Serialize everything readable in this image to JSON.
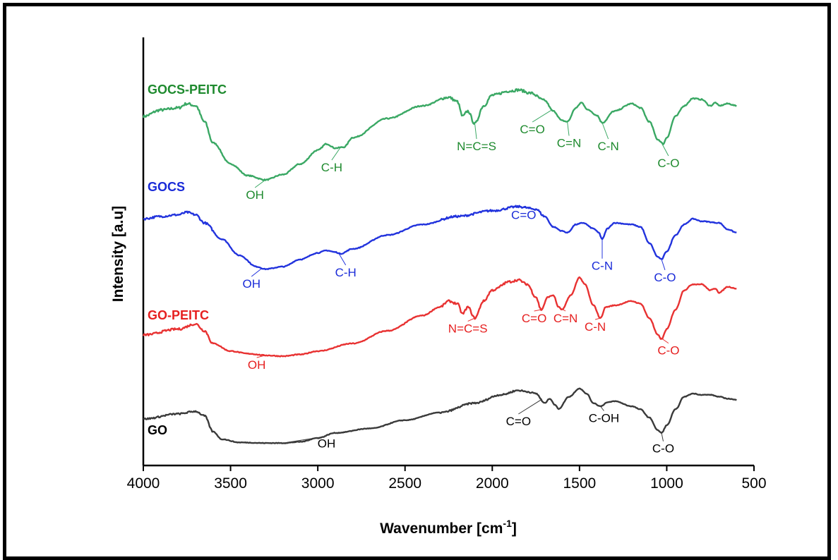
{
  "chart_data": {
    "type": "line",
    "title": "",
    "xlabel": "Wavenumber [cm",
    "xlabel_sup": "-1",
    "xlabel_end": "]",
    "ylabel": "Intensity  [a.u]",
    "xlim": [
      4000,
      500
    ],
    "x_reversed": true,
    "xticks": [
      4000,
      3500,
      3000,
      2500,
      2000,
      1500,
      1000,
      500
    ],
    "yticks_shown": false,
    "grid": false,
    "legend": "inline-labels",
    "series": [
      {
        "name": "GOCS-PEITC",
        "color": "#3aa864",
        "label_color": "#1e8a2e",
        "offset": 3,
        "points": [
          [
            4000,
            0.6
          ],
          [
            3900,
            0.66
          ],
          [
            3800,
            0.68
          ],
          [
            3750,
            0.72
          ],
          [
            3700,
            0.7
          ],
          [
            3650,
            0.55
          ],
          [
            3600,
            0.35
          ],
          [
            3500,
            0.15
          ],
          [
            3400,
            0.04
          ],
          [
            3300,
            0.0
          ],
          [
            3200,
            0.05
          ],
          [
            3100,
            0.15
          ],
          [
            3000,
            0.28
          ],
          [
            2950,
            0.34
          ],
          [
            2900,
            0.3
          ],
          [
            2850,
            0.31
          ],
          [
            2800,
            0.4
          ],
          [
            2600,
            0.58
          ],
          [
            2400,
            0.7
          ],
          [
            2250,
            0.78
          ],
          [
            2200,
            0.74
          ],
          [
            2170,
            0.6
          ],
          [
            2140,
            0.65
          ],
          [
            2100,
            0.53
          ],
          [
            2050,
            0.7
          ],
          [
            2000,
            0.8
          ],
          [
            1900,
            0.84
          ],
          [
            1850,
            0.85
          ],
          [
            1780,
            0.82
          ],
          [
            1700,
            0.75
          ],
          [
            1650,
            0.65
          ],
          [
            1600,
            0.56
          ],
          [
            1570,
            0.55
          ],
          [
            1520,
            0.68
          ],
          [
            1490,
            0.73
          ],
          [
            1450,
            0.66
          ],
          [
            1400,
            0.61
          ],
          [
            1370,
            0.54
          ],
          [
            1300,
            0.65
          ],
          [
            1200,
            0.72
          ],
          [
            1150,
            0.68
          ],
          [
            1100,
            0.55
          ],
          [
            1050,
            0.38
          ],
          [
            1020,
            0.34
          ],
          [
            1000,
            0.4
          ],
          [
            950,
            0.6
          ],
          [
            900,
            0.7
          ],
          [
            850,
            0.77
          ],
          [
            800,
            0.76
          ],
          [
            750,
            0.7
          ],
          [
            720,
            0.73
          ],
          [
            700,
            0.7
          ],
          [
            650,
            0.72
          ],
          [
            600,
            0.7
          ]
        ],
        "annotations": [
          {
            "label": "OH",
            "x": 3300,
            "tx": 3360,
            "ty": -0.18
          },
          {
            "label": "C-H",
            "x": 2870,
            "tx": 2920,
            "ty": 0.08
          },
          {
            "label": "N=C=S",
            "x": 2100,
            "tx": 2090,
            "ty": 0.28
          },
          {
            "label": "C=O",
            "x": 1660,
            "tx": 1770,
            "ty": 0.44
          },
          {
            "label": "C=N",
            "x": 1570,
            "tx": 1560,
            "ty": 0.31
          },
          {
            "label": "C-N",
            "x": 1370,
            "tx": 1335,
            "ty": 0.28
          },
          {
            "label": "C-O",
            "x": 1030,
            "tx": 990,
            "ty": 0.12
          }
        ]
      },
      {
        "name": "GOCS",
        "color": "#2233dd",
        "label_color": "#1a2bd8",
        "offset": 2,
        "points": [
          [
            4000,
            0.65
          ],
          [
            3900,
            0.68
          ],
          [
            3800,
            0.7
          ],
          [
            3750,
            0.73
          ],
          [
            3700,
            0.7
          ],
          [
            3650,
            0.6
          ],
          [
            3550,
            0.4
          ],
          [
            3450,
            0.2
          ],
          [
            3350,
            0.06
          ],
          [
            3300,
            0.03
          ],
          [
            3200,
            0.06
          ],
          [
            3100,
            0.15
          ],
          [
            3000,
            0.23
          ],
          [
            2950,
            0.26
          ],
          [
            2900,
            0.24
          ],
          [
            2870,
            0.22
          ],
          [
            2800,
            0.28
          ],
          [
            2600,
            0.45
          ],
          [
            2400,
            0.58
          ],
          [
            2200,
            0.68
          ],
          [
            2000,
            0.75
          ],
          [
            1850,
            0.8
          ],
          [
            1750,
            0.77
          ],
          [
            1700,
            0.68
          ],
          [
            1650,
            0.55
          ],
          [
            1600,
            0.5
          ],
          [
            1570,
            0.48
          ],
          [
            1520,
            0.58
          ],
          [
            1480,
            0.6
          ],
          [
            1420,
            0.53
          ],
          [
            1390,
            0.48
          ],
          [
            1370,
            0.4
          ],
          [
            1340,
            0.53
          ],
          [
            1300,
            0.6
          ],
          [
            1200,
            0.58
          ],
          [
            1150,
            0.55
          ],
          [
            1100,
            0.35
          ],
          [
            1050,
            0.18
          ],
          [
            1030,
            0.15
          ],
          [
            1000,
            0.25
          ],
          [
            950,
            0.45
          ],
          [
            900,
            0.58
          ],
          [
            850,
            0.65
          ],
          [
            800,
            0.62
          ],
          [
            700,
            0.6
          ],
          [
            650,
            0.52
          ],
          [
            600,
            0.48
          ]
        ],
        "annotations": [
          {
            "label": "OH",
            "x": 3320,
            "tx": 3380,
            "ty": -0.2
          },
          {
            "label": "C-H",
            "x": 2880,
            "tx": 2840,
            "ty": -0.06
          },
          {
            "label": "C=O",
            "x": 1760,
            "tx": 1820,
            "ty": 0.65
          },
          {
            "label": "C-N",
            "x": 1370,
            "tx": 1370,
            "ty": 0.02
          },
          {
            "label": "C-O",
            "x": 1030,
            "tx": 1010,
            "ty": -0.12
          }
        ]
      },
      {
        "name": "GO-PEITC",
        "color": "#e83232",
        "label_color": "#e62020",
        "offset": 1,
        "points": [
          [
            4000,
            0.25
          ],
          [
            3800,
            0.32
          ],
          [
            3700,
            0.38
          ],
          [
            3650,
            0.3
          ],
          [
            3600,
            0.15
          ],
          [
            3500,
            0.06
          ],
          [
            3400,
            0.03
          ],
          [
            3300,
            0.01
          ],
          [
            3200,
            0.0
          ],
          [
            3100,
            0.02
          ],
          [
            3000,
            0.06
          ],
          [
            2800,
            0.15
          ],
          [
            2600,
            0.3
          ],
          [
            2400,
            0.48
          ],
          [
            2300,
            0.58
          ],
          [
            2250,
            0.65
          ],
          [
            2200,
            0.62
          ],
          [
            2170,
            0.5
          ],
          [
            2140,
            0.58
          ],
          [
            2100,
            0.45
          ],
          [
            2050,
            0.65
          ],
          [
            2000,
            0.78
          ],
          [
            1900,
            0.88
          ],
          [
            1850,
            0.9
          ],
          [
            1800,
            0.85
          ],
          [
            1750,
            0.7
          ],
          [
            1720,
            0.55
          ],
          [
            1680,
            0.7
          ],
          [
            1650,
            0.72
          ],
          [
            1620,
            0.58
          ],
          [
            1600,
            0.55
          ],
          [
            1550,
            0.72
          ],
          [
            1500,
            0.93
          ],
          [
            1470,
            0.85
          ],
          [
            1420,
            0.6
          ],
          [
            1380,
            0.45
          ],
          [
            1350,
            0.58
          ],
          [
            1300,
            0.6
          ],
          [
            1200,
            0.65
          ],
          [
            1150,
            0.62
          ],
          [
            1100,
            0.45
          ],
          [
            1050,
            0.25
          ],
          [
            1030,
            0.2
          ],
          [
            1000,
            0.32
          ],
          [
            950,
            0.55
          ],
          [
            900,
            0.78
          ],
          [
            850,
            0.85
          ],
          [
            800,
            0.85
          ],
          [
            750,
            0.78
          ],
          [
            720,
            0.8
          ],
          [
            700,
            0.75
          ],
          [
            650,
            0.82
          ],
          [
            600,
            0.8
          ]
        ],
        "annotations": [
          {
            "label": "OH",
            "x": 3300,
            "tx": 3350,
            "ty": -0.15
          },
          {
            "label": "N=C=S",
            "x": 2100,
            "tx": 2140,
            "ty": 0.28
          },
          {
            "label": "C=O",
            "x": 1720,
            "tx": 1760,
            "ty": 0.4
          },
          {
            "label": "C=N",
            "x": 1620,
            "tx": 1580,
            "ty": 0.4
          },
          {
            "label": "C-N",
            "x": 1380,
            "tx": 1410,
            "ty": 0.3
          },
          {
            "label": "C-O",
            "x": 1040,
            "tx": 990,
            "ty": 0.02
          }
        ]
      },
      {
        "name": "GO",
        "color": "#3a3a3a",
        "label_color": "#000000",
        "offset": 0,
        "points": [
          [
            4000,
            0.4
          ],
          [
            3800,
            0.48
          ],
          [
            3700,
            0.52
          ],
          [
            3650,
            0.45
          ],
          [
            3600,
            0.2
          ],
          [
            3550,
            0.08
          ],
          [
            3450,
            0.03
          ],
          [
            3300,
            0.02
          ],
          [
            3200,
            0.02
          ],
          [
            3100,
            0.04
          ],
          [
            3000,
            0.1
          ],
          [
            2900,
            0.18
          ],
          [
            2700,
            0.25
          ],
          [
            2500,
            0.38
          ],
          [
            2300,
            0.5
          ],
          [
            2100,
            0.65
          ],
          [
            1950,
            0.78
          ],
          [
            1850,
            0.85
          ],
          [
            1800,
            0.83
          ],
          [
            1750,
            0.8
          ],
          [
            1700,
            0.65
          ],
          [
            1670,
            0.72
          ],
          [
            1640,
            0.62
          ],
          [
            1620,
            0.56
          ],
          [
            1560,
            0.75
          ],
          [
            1500,
            0.88
          ],
          [
            1460,
            0.8
          ],
          [
            1420,
            0.65
          ],
          [
            1380,
            0.6
          ],
          [
            1340,
            0.66
          ],
          [
            1300,
            0.68
          ],
          [
            1200,
            0.6
          ],
          [
            1150,
            0.55
          ],
          [
            1100,
            0.42
          ],
          [
            1050,
            0.22
          ],
          [
            1030,
            0.18
          ],
          [
            1000,
            0.3
          ],
          [
            950,
            0.55
          ],
          [
            900,
            0.75
          ],
          [
            850,
            0.8
          ],
          [
            800,
            0.78
          ],
          [
            750,
            0.78
          ],
          [
            700,
            0.75
          ],
          [
            650,
            0.72
          ],
          [
            600,
            0.7
          ]
        ],
        "annotations": [
          {
            "label": "OH",
            "x": 3200,
            "tx": 2950,
            "ty": -0.05
          },
          {
            "label": "C=O",
            "x": 1720,
            "tx": 1850,
            "ty": 0.3
          },
          {
            "label": "C-OH",
            "x": 1380,
            "tx": 1360,
            "ty": 0.35
          },
          {
            "label": "C-O",
            "x": 1030,
            "tx": 1020,
            "ty": -0.13
          }
        ]
      }
    ]
  }
}
